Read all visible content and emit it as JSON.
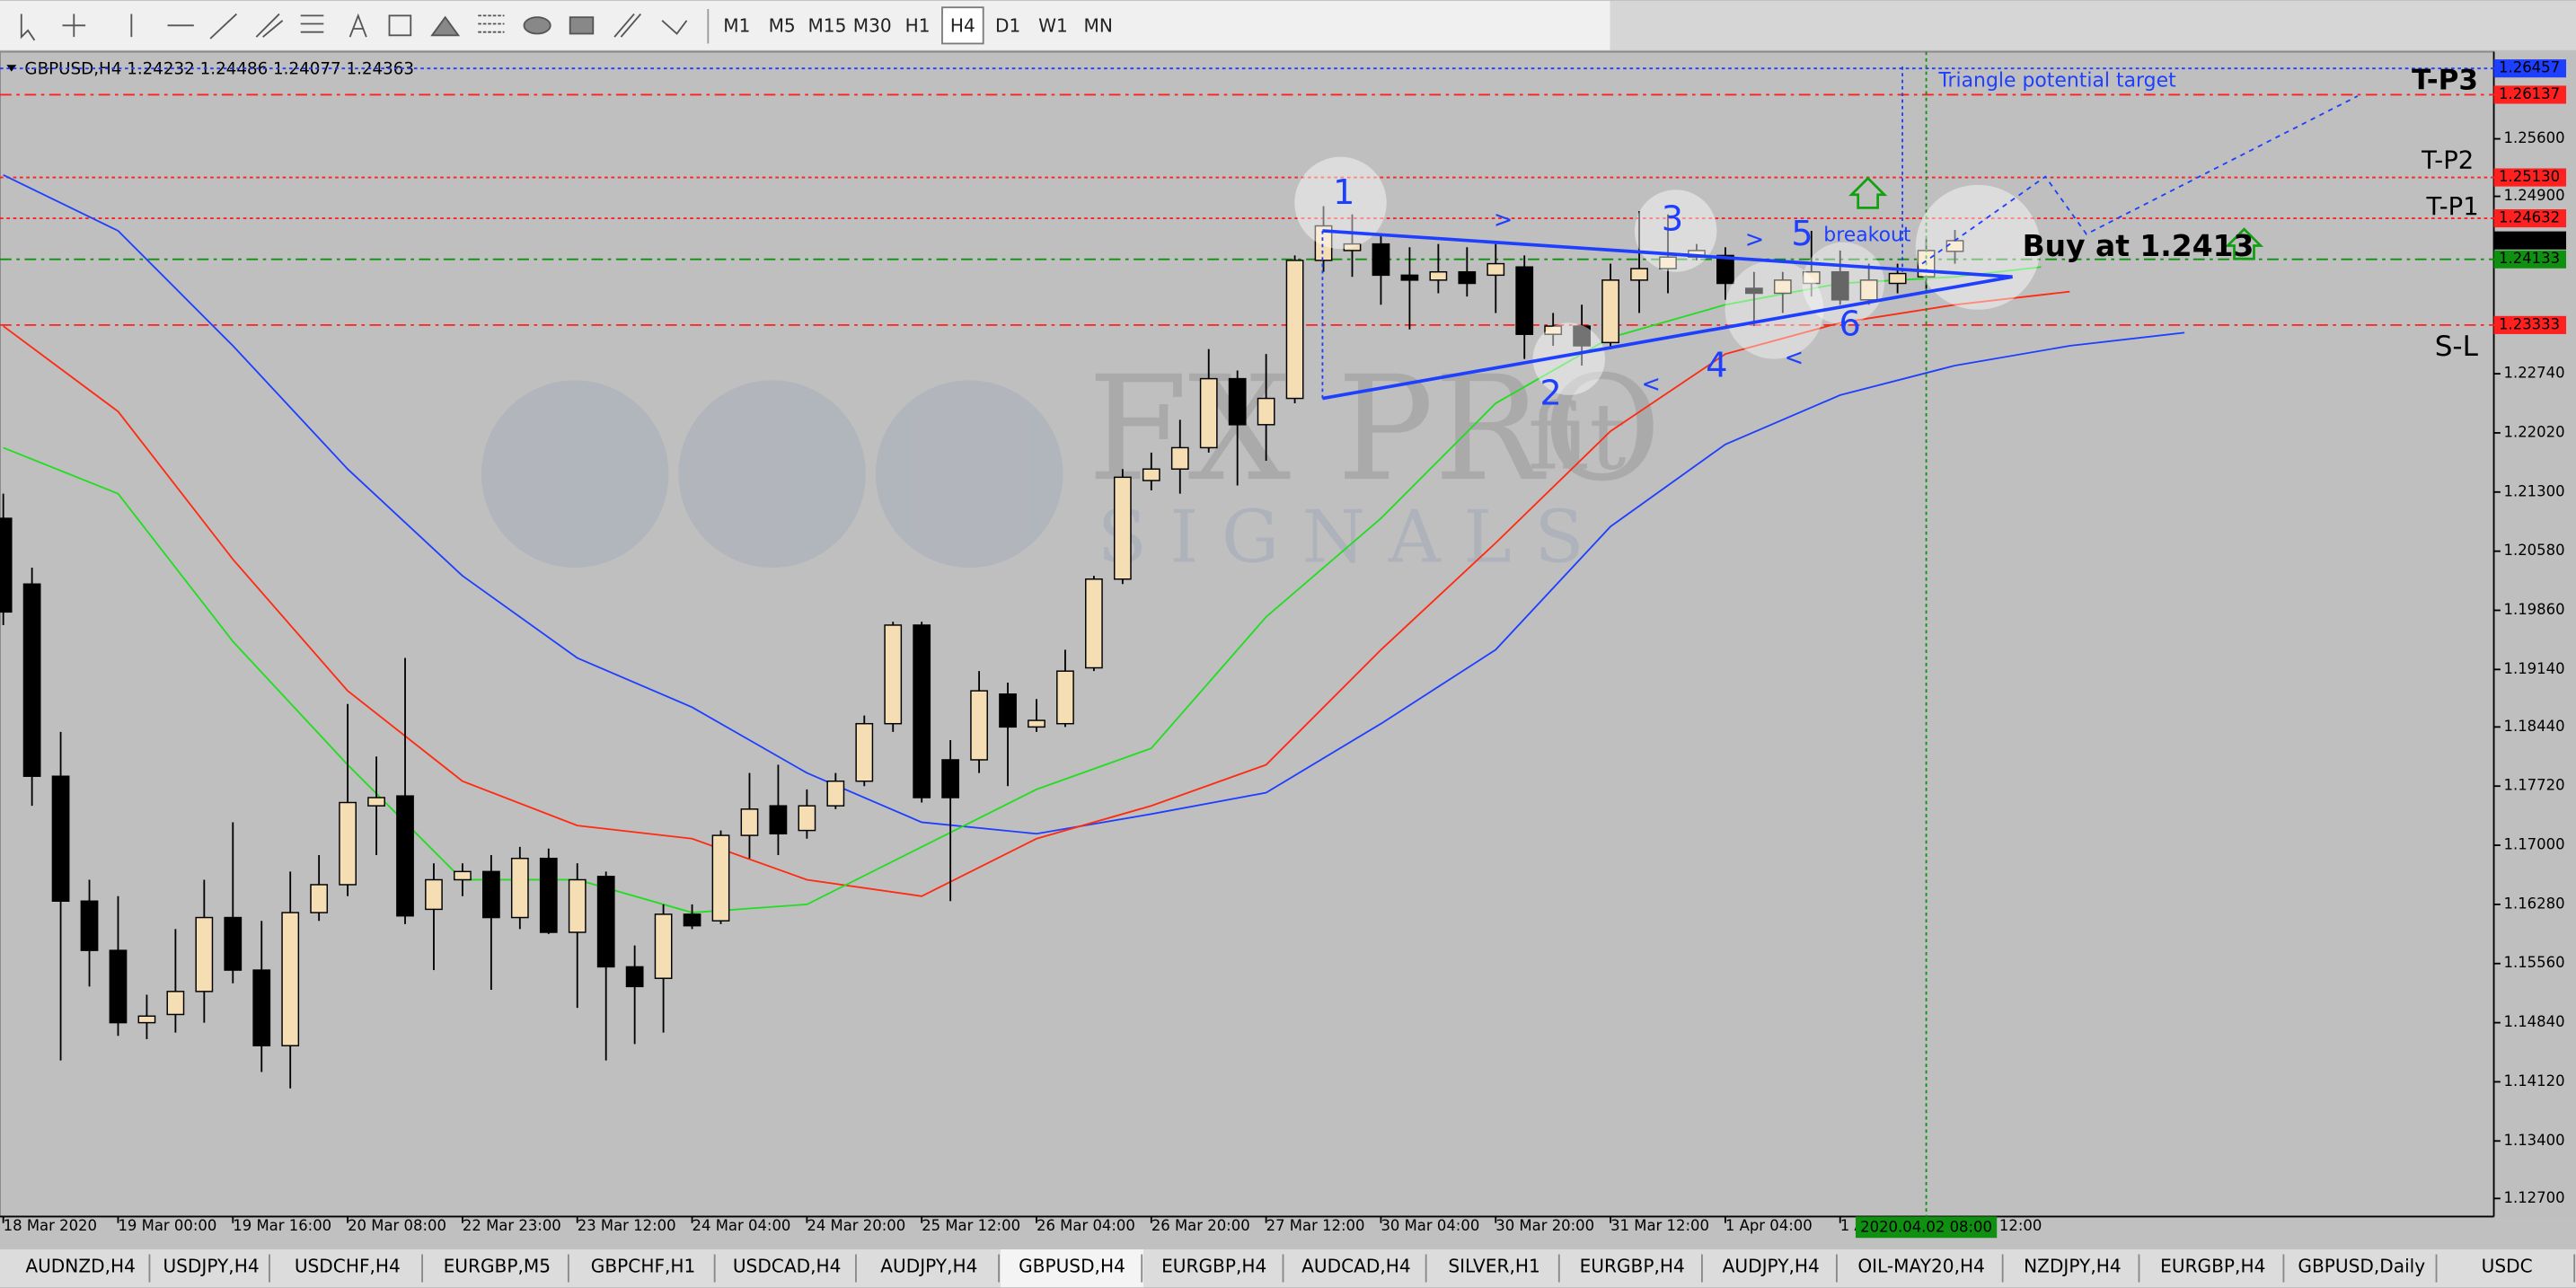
{
  "toolbar": {
    "timeframes": [
      "M1",
      "M5",
      "M15",
      "M30",
      "H1",
      "H4",
      "D1",
      "W1",
      "MN"
    ],
    "active": "H4"
  },
  "chart_data": {
    "type": "candlestick",
    "header": "GBPUSD,H4  1.24232 1.24486 1.24077 1.24363",
    "open": [
      1.2098,
      1.2018,
      1.1784,
      1.1632,
      1.1572,
      1.1484,
      1.1494,
      1.1522,
      1.1612,
      1.1548,
      1.1456,
      1.1618,
      1.1652,
      1.1748,
      1.176,
      1.1622,
      1.1658,
      1.1668,
      1.1612,
      1.1684,
      1.1594,
      1.1662,
      1.1552,
      1.1538,
      1.1616,
      1.1608,
      1.1712,
      1.1748,
      1.1718,
      1.1748,
      1.1778,
      1.1848,
      1.1968,
      1.1804,
      1.1804,
      1.1884,
      1.1844,
      1.1848,
      1.1916,
      1.2024,
      1.2144,
      1.2158,
      1.2184,
      1.2268,
      1.2212,
      1.2244,
      1.2412,
      1.2424,
      1.2432,
      1.2394,
      1.2388,
      1.2398,
      1.2394,
      1.2404,
      1.2322,
      1.2332,
      1.2312,
      1.2388,
      1.2402,
      1.2416,
      1.2418,
      1.2378,
      1.2372,
      1.2384,
      1.2398,
      1.2364,
      1.2384,
      1.2392,
      1.2423
    ],
    "high": [
      1.2128,
      1.2038,
      1.1838,
      1.1658,
      1.1638,
      1.1518,
      1.1598,
      1.1658,
      1.1728,
      1.1608,
      1.1668,
      1.1688,
      1.1872,
      1.1808,
      1.1928,
      1.1678,
      1.1678,
      1.1688,
      1.1698,
      1.1696,
      1.1678,
      1.1668,
      1.1578,
      1.1628,
      1.1628,
      1.1718,
      1.1788,
      1.1798,
      1.1768,
      1.1788,
      1.1858,
      1.1972,
      1.1972,
      1.1828,
      1.1912,
      1.1898,
      1.1878,
      1.1938,
      1.2028,
      1.2158,
      1.2178,
      1.2218,
      1.2304,
      1.2278,
      1.2298,
      1.2418,
      1.2478,
      1.2468,
      1.2444,
      1.2428,
      1.2432,
      1.2428,
      1.2432,
      1.2418,
      1.2348,
      1.2358,
      1.2408,
      1.2472,
      1.2468,
      1.2432,
      1.2428,
      1.2398,
      1.2398,
      1.2448,
      1.2424,
      1.2408,
      1.2408,
      1.2438,
      1.2449
    ],
    "low": [
      1.1968,
      1.1748,
      1.1438,
      1.1528,
      1.1468,
      1.1464,
      1.1472,
      1.1484,
      1.1532,
      1.1424,
      1.1404,
      1.1608,
      1.1638,
      1.1688,
      1.1604,
      1.1548,
      1.1638,
      1.1524,
      1.1598,
      1.1592,
      1.1502,
      1.1438,
      1.1458,
      1.1472,
      1.1598,
      1.1604,
      1.1684,
      1.1688,
      1.1708,
      1.1744,
      1.1772,
      1.1838,
      1.1752,
      1.1632,
      1.1788,
      1.1772,
      1.1838,
      1.1844,
      1.1912,
      1.2018,
      1.2132,
      1.2128,
      1.2178,
      1.2138,
      1.2168,
      1.2238,
      1.2398,
      1.2392,
      1.2358,
      1.2328,
      1.2372,
      1.2368,
      1.2348,
      1.2292,
      1.2308,
      1.2284,
      1.2304,
      1.2348,
      1.2372,
      1.2412,
      1.2364,
      1.2332,
      1.2348,
      1.2368,
      1.2358,
      1.2358,
      1.2372,
      1.2378,
      1.2408
    ],
    "close": [
      1.1984,
      1.1784,
      1.1632,
      1.1572,
      1.1484,
      1.1492,
      1.1522,
      1.1612,
      1.1548,
      1.1456,
      1.1618,
      1.1652,
      1.1752,
      1.1758,
      1.1614,
      1.1658,
      1.1668,
      1.1612,
      1.1684,
      1.1594,
      1.1658,
      1.1552,
      1.1528,
      1.1616,
      1.1602,
      1.1712,
      1.1744,
      1.1714,
      1.1748,
      1.1778,
      1.1848,
      1.1968,
      1.1758,
      1.1758,
      1.1888,
      1.1844,
      1.1852,
      1.1912,
      1.2024,
      1.2148,
      1.2158,
      1.2184,
      1.2268,
      1.2212,
      1.2244,
      1.2412,
      1.2454,
      1.2432,
      1.2394,
      1.2388,
      1.2398,
      1.2384,
      1.2408,
      1.2322,
      1.2332,
      1.2308,
      1.2388,
      1.2402,
      1.2416,
      1.2424,
      1.2384,
      1.2372,
      1.2388,
      1.2398,
      1.2364,
      1.2388,
      1.2396,
      1.2424,
      1.2436
    ],
    "bull_color": "#f5deb3",
    "bear_color": "#000000",
    "lines": [
      {
        "color": "#1f3fff",
        "x": [
          0,
          4,
          8,
          12,
          16,
          20,
          24,
          28,
          32,
          36,
          40,
          44,
          48,
          52,
          56,
          60,
          64,
          68,
          72,
          76
        ],
        "values": [
          1.2516,
          1.2448,
          1.2308,
          1.2158,
          1.2028,
          1.1928,
          1.1868,
          1.1788,
          1.1728,
          1.1714,
          1.1738,
          1.1764,
          1.1848,
          1.1938,
          1.2088,
          1.2188,
          1.2248,
          1.2284,
          1.2308,
          1.2324
        ]
      },
      {
        "color": "#ff2a10",
        "x": [
          0,
          4,
          8,
          12,
          16,
          20,
          24,
          28,
          32,
          36,
          40,
          44,
          48,
          52,
          56,
          60,
          64,
          68,
          72
        ],
        "values": [
          1.2332,
          1.2228,
          1.2048,
          1.1888,
          1.1778,
          1.1724,
          1.1708,
          1.1658,
          1.1638,
          1.1708,
          1.1748,
          1.1798,
          1.1938,
          1.2068,
          1.2204,
          1.2298,
          1.2336,
          1.2358,
          1.2374
        ]
      },
      {
        "color": "#22dd22",
        "x": [
          0,
          4,
          8,
          12,
          16,
          20,
          24,
          28,
          32,
          36,
          40,
          44,
          48,
          52,
          56,
          60,
          64,
          68,
          71
        ],
        "values": [
          1.2184,
          1.2128,
          1.1948,
          1.1798,
          1.1658,
          1.1658,
          1.1618,
          1.1628,
          1.1698,
          1.1768,
          1.1818,
          1.1978,
          1.2098,
          1.2238,
          1.2318,
          1.2358,
          1.2384,
          1.2392,
          1.2404
        ]
      }
    ],
    "ylim": [
      1.1248,
      1.2668
    ],
    "yticks": [
      {
        "value": 1.256,
        "label": "1.25600"
      },
      {
        "value": 1.249,
        "label": "1.24900"
      },
      {
        "value": 1.2274,
        "label": "1.22740"
      },
      {
        "value": 1.2202,
        "label": "1.22020"
      },
      {
        "value": 1.213,
        "label": "1.21300"
      },
      {
        "value": 1.2058,
        "label": "1.20580"
      },
      {
        "value": 1.1986,
        "label": "1.19860"
      },
      {
        "value": 1.1914,
        "label": "1.19140"
      },
      {
        "value": 1.1844,
        "label": "1.18440"
      },
      {
        "value": 1.1772,
        "label": "1.17720"
      },
      {
        "value": 1.17,
        "label": "1.17000"
      },
      {
        "value": 1.1628,
        "label": "1.16280"
      },
      {
        "value": 1.1556,
        "label": "1.15560"
      },
      {
        "value": 1.1484,
        "label": "1.14840"
      },
      {
        "value": 1.1412,
        "label": "1.14120"
      },
      {
        "value": 1.134,
        "label": "1.13400"
      },
      {
        "value": 1.127,
        "label": "1.12700"
      }
    ],
    "xticks": [
      {
        "value": 0,
        "label": "18 Mar 2020"
      },
      {
        "value": 4,
        "label": "19 Mar 00:00"
      },
      {
        "value": 8,
        "label": "19 Mar 16:00"
      },
      {
        "value": 12,
        "label": "20 Mar 08:00"
      },
      {
        "value": 16,
        "label": "22 Mar 23:00"
      },
      {
        "value": 20,
        "label": "23 Mar 12:00"
      },
      {
        "value": 24,
        "label": "24 Mar 04:00"
      },
      {
        "value": 28,
        "label": "24 Mar 20:00"
      },
      {
        "value": 32,
        "label": "25 Mar 12:00"
      },
      {
        "value": 36,
        "label": "26 Mar 04:00"
      },
      {
        "value": 40,
        "label": "26 Mar 20:00"
      },
      {
        "value": 44,
        "label": "27 Mar 12:00"
      },
      {
        "value": 48,
        "label": "30 Mar 04:00"
      },
      {
        "value": 52,
        "label": "30 Mar 20:00"
      },
      {
        "value": 56,
        "label": "31 Mar 12:00"
      },
      {
        "value": 60,
        "label": "1 Apr 04:00"
      },
      {
        "value": 64,
        "label": "1 Apr 20:00"
      },
      {
        "value": 68,
        "label": "2 Apr 12:00"
      }
    ],
    "levels": [
      {
        "value": 1.26457,
        "label": "1.26457",
        "color": "#1f3fff",
        "style": "dotted"
      },
      {
        "value": 1.26137,
        "label": "1.26137",
        "color": "#ff2020",
        "style": "dashdot"
      },
      {
        "value": 1.2513,
        "label": "1.25130",
        "color": "#ff2020",
        "style": "dotted"
      },
      {
        "value": 1.24632,
        "label": "1.24632",
        "color": "#ff2020",
        "style": "dotted"
      },
      {
        "value": 1.24363,
        "label": "1.24363",
        "color": "#000000",
        "style": "none"
      },
      {
        "value": 1.24133,
        "label": "1.24133",
        "color": "#109010",
        "style": "dashdot"
      },
      {
        "value": 1.23333,
        "label": "1.23333",
        "color": "#ff2020",
        "style": "dashdot"
      }
    ],
    "crosshair": {
      "x": 67,
      "label": "2020.04.02 08:00"
    },
    "annotations": {
      "target": "Triangle potential target",
      "tp3": "T-P3",
      "tp2": "T-P2",
      "tp1": "T-P1",
      "sl": "S-L",
      "buy": "Buy at 1.2413",
      "breakout": "breakout"
    },
    "points": [
      "1",
      "2",
      "3",
      "4",
      "5",
      "6"
    ],
    "arrows": [
      ">",
      ">",
      "<",
      "<"
    ],
    "watermark": {
      "brand": "FX PRO",
      "suffix": "fit",
      "sub": "S I G N A L S"
    }
  },
  "tabs": {
    "items": [
      "AUDNZD,H4",
      "USDJPY,H4",
      "USDCHF,H4",
      "EURGBP,M5",
      "GBPCHF,H1",
      "USDCAD,H4",
      "AUDJPY,H4",
      "GBPUSD,H4",
      "EURGBP,H4",
      "AUDCAD,H4",
      "SILVER,H1",
      "EURGBP,H4",
      "AUDJPY,H4",
      "OIL-MAY20,H4",
      "NZDJPY,H4",
      "EURGBP,H4",
      "GBPUSD,Daily",
      "USDC"
    ],
    "active": "GBPUSD,H4"
  }
}
